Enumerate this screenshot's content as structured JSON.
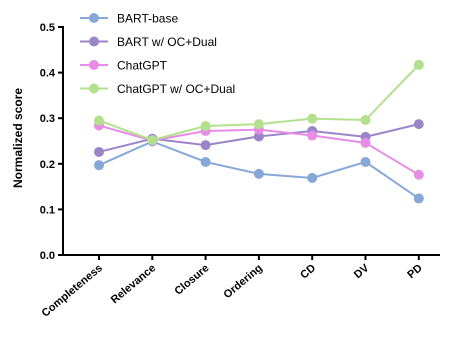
{
  "chart_data": {
    "type": "line",
    "categories": [
      "Completeness",
      "Relevance",
      "Closure",
      "Ordering",
      "CD",
      "DV",
      "PD"
    ],
    "ylabel": "Normalized score",
    "xlabel": "",
    "ylim": [
      0.0,
      0.5
    ],
    "yticks": [
      "0.0",
      "0.1",
      "0.2",
      "0.3",
      "0.4",
      "0.5"
    ],
    "grid": false,
    "legend_position": "top",
    "series": [
      {
        "name": "BART-base",
        "color": "#86a8d8",
        "values": [
          0.197,
          0.249,
          0.204,
          0.178,
          0.169,
          0.204,
          0.124
        ]
      },
      {
        "name": "BART w/ OC+Dual",
        "color": "#9b85c9",
        "values": [
          0.226,
          0.255,
          0.241,
          0.26,
          0.272,
          0.259,
          0.287
        ]
      },
      {
        "name": "ChatGPT",
        "color": "#e68de6",
        "values": [
          0.284,
          0.251,
          0.272,
          0.275,
          0.262,
          0.246,
          0.176
        ]
      },
      {
        "name": "ChatGPT w/ OC+Dual",
        "color": "#b3e08c",
        "values": [
          0.295,
          0.252,
          0.283,
          0.287,
          0.299,
          0.296,
          0.417
        ]
      }
    ]
  }
}
